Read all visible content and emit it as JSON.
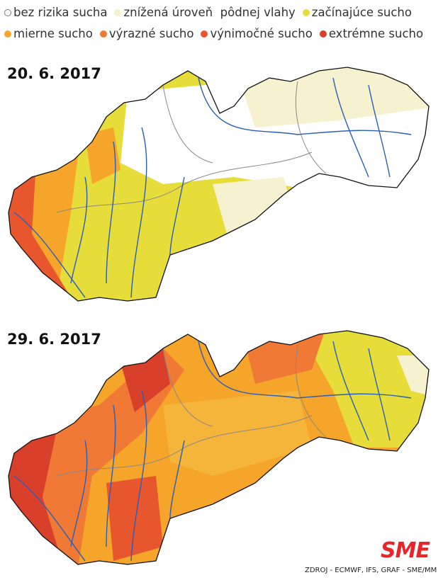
{
  "legend": [
    {
      "label": "bez rizika sucha",
      "color": "#ffffff"
    },
    {
      "label": "znížená úroveň  pôdnej vlahy",
      "color": "#f6f1cf"
    },
    {
      "label": "začínajúce sucho",
      "color": "#e6dc3a"
    },
    {
      "label": "mierne sucho",
      "color": "#f5a52a"
    },
    {
      "label": "výrazné sucho",
      "color": "#f07a35"
    },
    {
      "label": "výnimočné sucho",
      "color": "#e8562e"
    },
    {
      "label": "extrémne sucho",
      "color": "#d8402c"
    }
  ],
  "maps": [
    {
      "date": "20. 6. 2017"
    },
    {
      "date": "29. 6. 2017"
    }
  ],
  "logo": "SME",
  "source": "ZDROJ - ECMWF, IFS, GRAF - SME/MM"
}
